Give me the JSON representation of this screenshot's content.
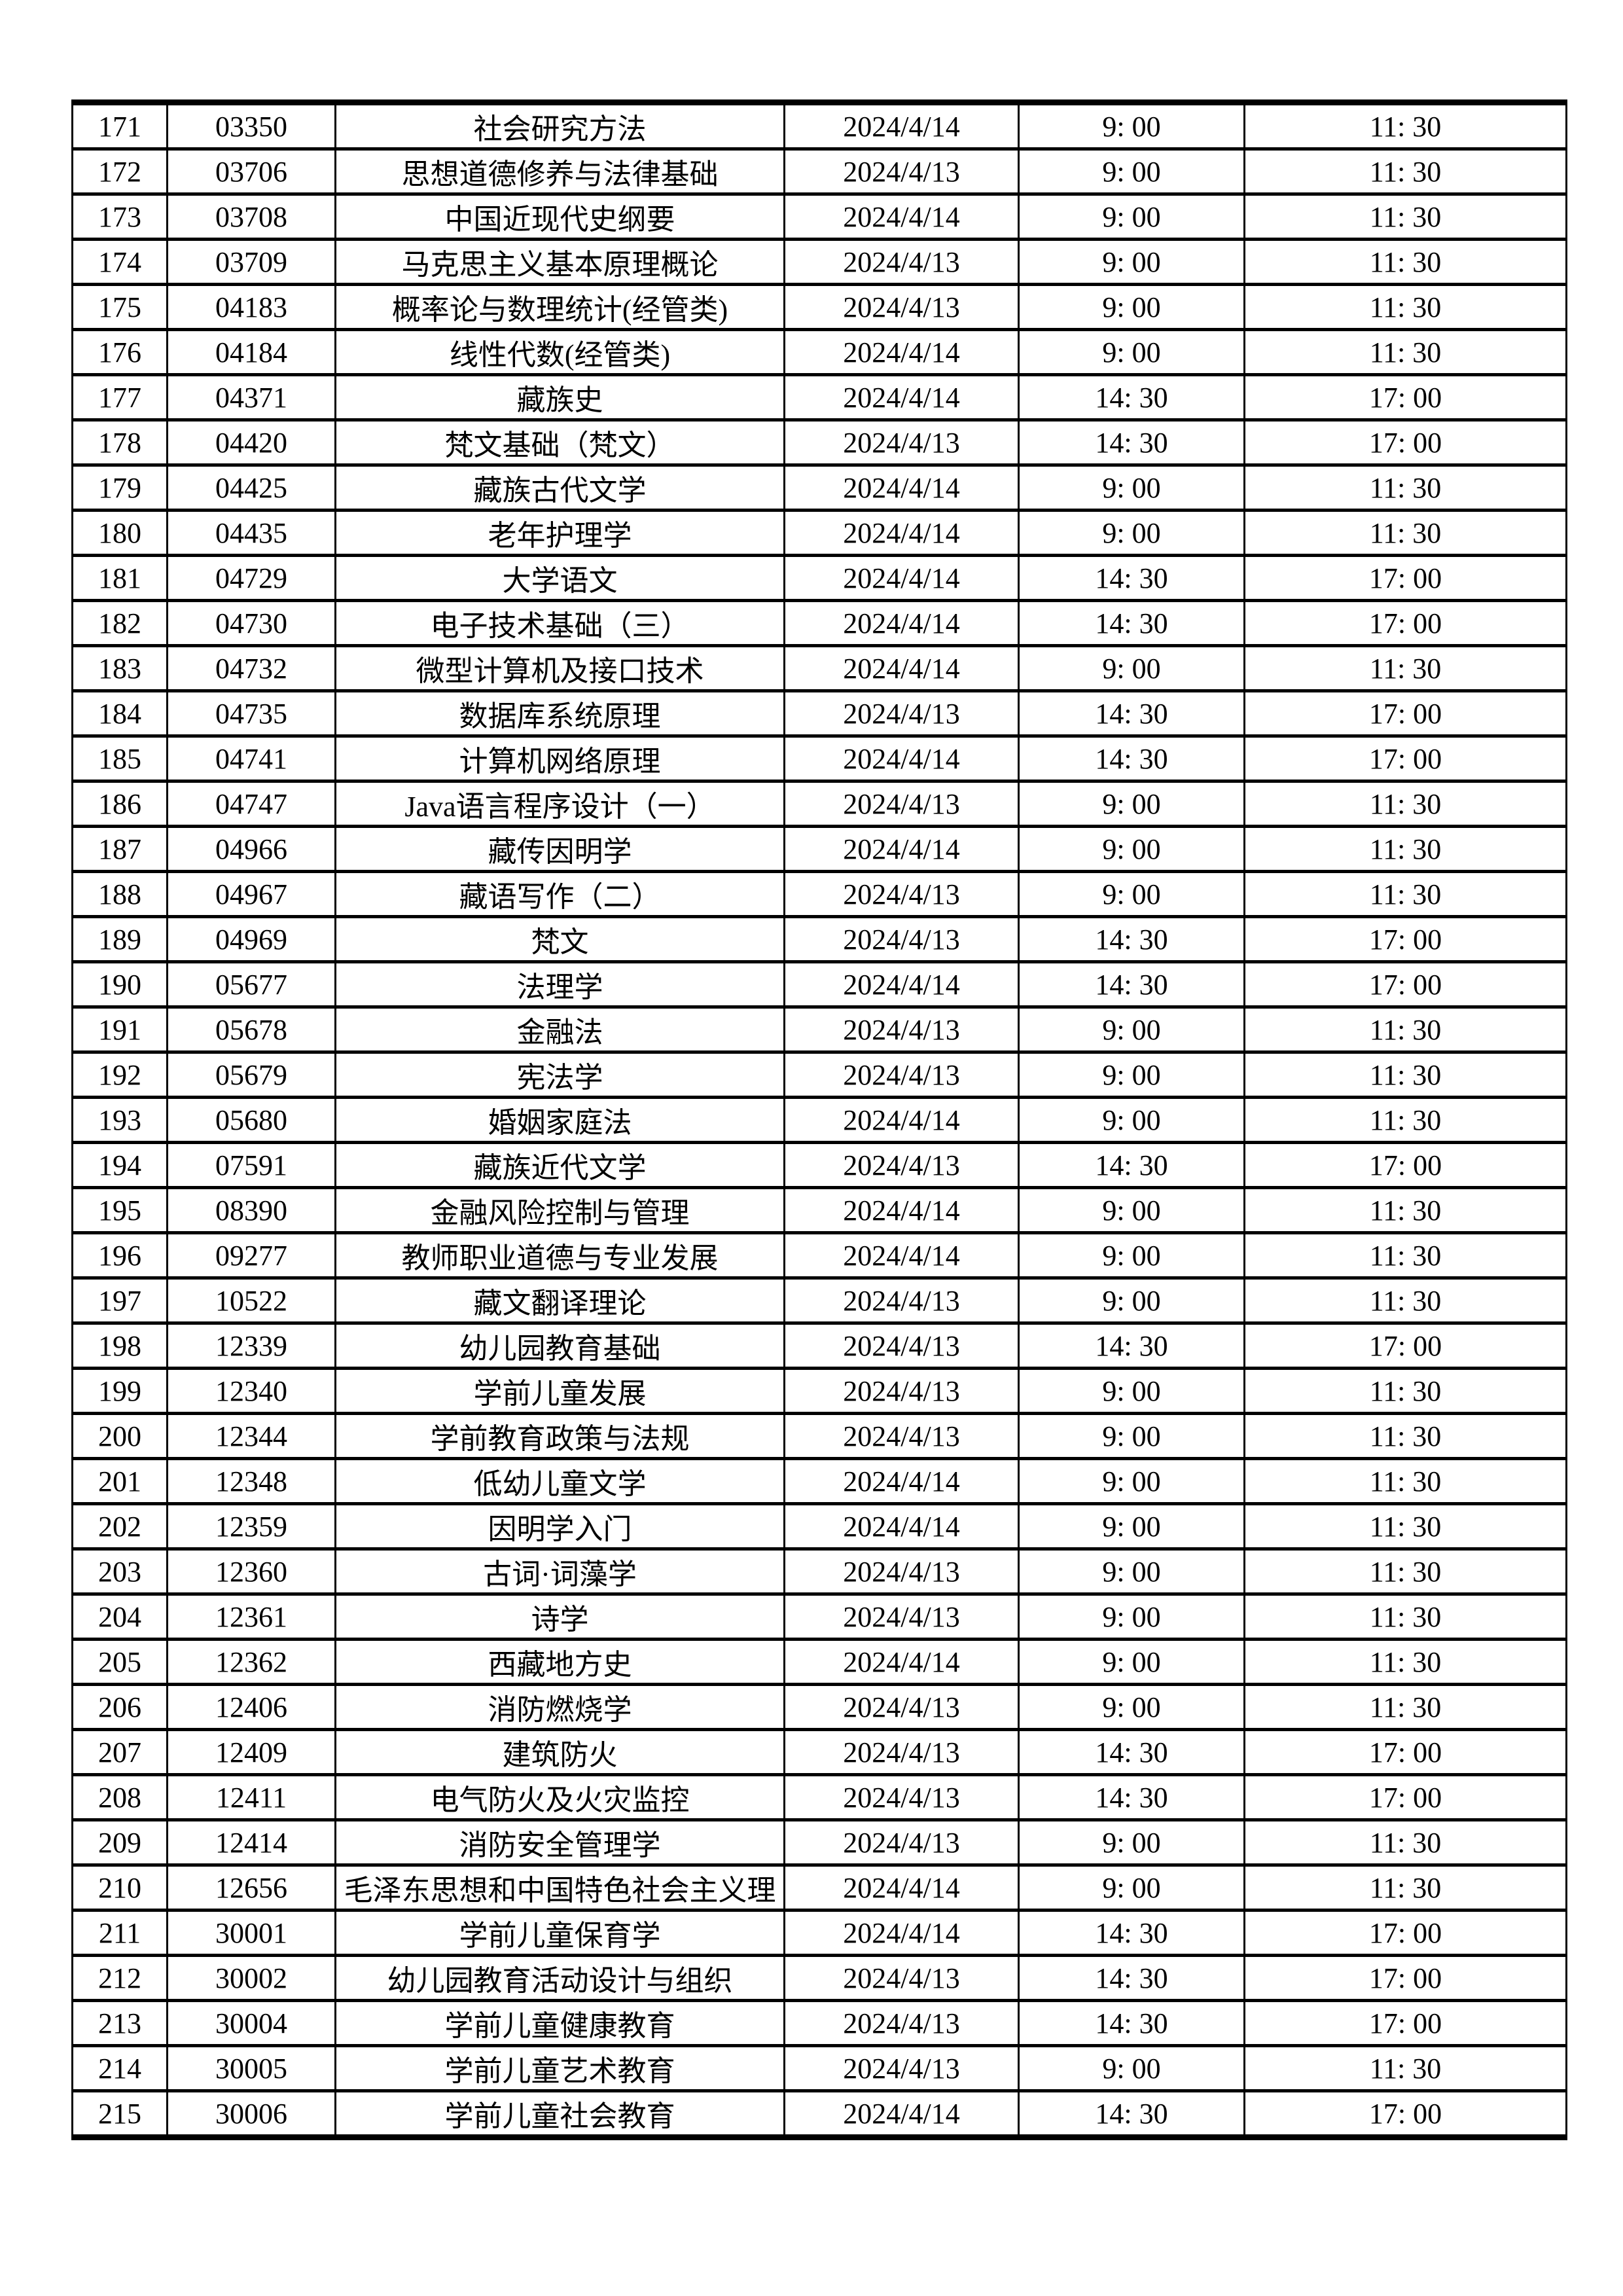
{
  "page": {
    "background": "#ffffff",
    "border_color": "#000000",
    "text_color": "#000000"
  },
  "table": {
    "rows": [
      {
        "no": "171",
        "code": "03350",
        "name": "社会研究方法",
        "date": "2024/4/14",
        "start": "9: 00",
        "end": "11: 30"
      },
      {
        "no": "172",
        "code": "03706",
        "name": "思想道德修养与法律基础",
        "date": "2024/4/13",
        "start": "9: 00",
        "end": "11: 30"
      },
      {
        "no": "173",
        "code": "03708",
        "name": "中国近现代史纲要",
        "date": "2024/4/14",
        "start": "9: 00",
        "end": "11: 30"
      },
      {
        "no": "174",
        "code": "03709",
        "name": "马克思主义基本原理概论",
        "date": "2024/4/13",
        "start": "9: 00",
        "end": "11: 30"
      },
      {
        "no": "175",
        "code": "04183",
        "name": "概率论与数理统计(经管类)",
        "date": "2024/4/13",
        "start": "9: 00",
        "end": "11: 30"
      },
      {
        "no": "176",
        "code": "04184",
        "name": "线性代数(经管类)",
        "date": "2024/4/14",
        "start": "9: 00",
        "end": "11: 30"
      },
      {
        "no": "177",
        "code": "04371",
        "name": "藏族史",
        "date": "2024/4/14",
        "start": "14: 30",
        "end": "17: 00"
      },
      {
        "no": "178",
        "code": "04420",
        "name": "梵文基础（梵文）",
        "date": "2024/4/13",
        "start": "14: 30",
        "end": "17: 00"
      },
      {
        "no": "179",
        "code": "04425",
        "name": "藏族古代文学",
        "date": "2024/4/14",
        "start": "9: 00",
        "end": "11: 30"
      },
      {
        "no": "180",
        "code": "04435",
        "name": "老年护理学",
        "date": "2024/4/14",
        "start": "9: 00",
        "end": "11: 30"
      },
      {
        "no": "181",
        "code": "04729",
        "name": "大学语文",
        "date": "2024/4/14",
        "start": "14: 30",
        "end": "17: 00"
      },
      {
        "no": "182",
        "code": "04730",
        "name": "电子技术基础（三）",
        "date": "2024/4/14",
        "start": "14: 30",
        "end": "17: 00"
      },
      {
        "no": "183",
        "code": "04732",
        "name": "微型计算机及接口技术",
        "date": "2024/4/14",
        "start": "9: 00",
        "end": "11: 30"
      },
      {
        "no": "184",
        "code": "04735",
        "name": "数据库系统原理",
        "date": "2024/4/13",
        "start": "14: 30",
        "end": "17: 00"
      },
      {
        "no": "185",
        "code": "04741",
        "name": "计算机网络原理",
        "date": "2024/4/14",
        "start": "14: 30",
        "end": "17: 00"
      },
      {
        "no": "186",
        "code": "04747",
        "name": "Java语言程序设计（一）",
        "date": "2024/4/13",
        "start": "9: 00",
        "end": "11: 30"
      },
      {
        "no": "187",
        "code": "04966",
        "name": "藏传因明学",
        "date": "2024/4/14",
        "start": "9: 00",
        "end": "11: 30"
      },
      {
        "no": "188",
        "code": "04967",
        "name": "藏语写作（二）",
        "date": "2024/4/13",
        "start": "9: 00",
        "end": "11: 30"
      },
      {
        "no": "189",
        "code": "04969",
        "name": "梵文",
        "date": "2024/4/13",
        "start": "14: 30",
        "end": "17: 00"
      },
      {
        "no": "190",
        "code": "05677",
        "name": "法理学",
        "date": "2024/4/14",
        "start": "14: 30",
        "end": "17: 00"
      },
      {
        "no": "191",
        "code": "05678",
        "name": "金融法",
        "date": "2024/4/13",
        "start": "9: 00",
        "end": "11: 30"
      },
      {
        "no": "192",
        "code": "05679",
        "name": "宪法学",
        "date": "2024/4/13",
        "start": "9: 00",
        "end": "11: 30"
      },
      {
        "no": "193",
        "code": "05680",
        "name": "婚姻家庭法",
        "date": "2024/4/14",
        "start": "9: 00",
        "end": "11: 30"
      },
      {
        "no": "194",
        "code": "07591",
        "name": "藏族近代文学",
        "date": "2024/4/13",
        "start": "14: 30",
        "end": "17: 00"
      },
      {
        "no": "195",
        "code": "08390",
        "name": "金融风险控制与管理",
        "date": "2024/4/14",
        "start": "9: 00",
        "end": "11: 30"
      },
      {
        "no": "196",
        "code": "09277",
        "name": "教师职业道德与专业发展",
        "date": "2024/4/14",
        "start": "9: 00",
        "end": "11: 30"
      },
      {
        "no": "197",
        "code": "10522",
        "name": "藏文翻译理论",
        "date": "2024/4/13",
        "start": "9: 00",
        "end": "11: 30"
      },
      {
        "no": "198",
        "code": "12339",
        "name": "幼儿园教育基础",
        "date": "2024/4/13",
        "start": "14: 30",
        "end": "17: 00"
      },
      {
        "no": "199",
        "code": "12340",
        "name": "学前儿童发展",
        "date": "2024/4/13",
        "start": "9: 00",
        "end": "11: 30"
      },
      {
        "no": "200",
        "code": "12344",
        "name": "学前教育政策与法规",
        "date": "2024/4/13",
        "start": "9: 00",
        "end": "11: 30"
      },
      {
        "no": "201",
        "code": "12348",
        "name": "低幼儿童文学",
        "date": "2024/4/14",
        "start": "9: 00",
        "end": "11: 30"
      },
      {
        "no": "202",
        "code": "12359",
        "name": "因明学入门",
        "date": "2024/4/14",
        "start": "9: 00",
        "end": "11: 30"
      },
      {
        "no": "203",
        "code": "12360",
        "name": "古词·词藻学",
        "date": "2024/4/13",
        "start": "9: 00",
        "end": "11: 30"
      },
      {
        "no": "204",
        "code": "12361",
        "name": "诗学",
        "date": "2024/4/13",
        "start": "9: 00",
        "end": "11: 30"
      },
      {
        "no": "205",
        "code": "12362",
        "name": "西藏地方史",
        "date": "2024/4/14",
        "start": "9: 00",
        "end": "11: 30"
      },
      {
        "no": "206",
        "code": "12406",
        "name": "消防燃烧学",
        "date": "2024/4/13",
        "start": "9: 00",
        "end": "11: 30"
      },
      {
        "no": "207",
        "code": "12409",
        "name": "建筑防火",
        "date": "2024/4/13",
        "start": "14: 30",
        "end": "17: 00"
      },
      {
        "no": "208",
        "code": "12411",
        "name": "电气防火及火灾监控",
        "date": "2024/4/13",
        "start": "14: 30",
        "end": "17: 00"
      },
      {
        "no": "209",
        "code": "12414",
        "name": "消防安全管理学",
        "date": "2024/4/13",
        "start": "9: 00",
        "end": "11: 30"
      },
      {
        "no": "210",
        "code": "12656",
        "name": "毛泽东思想和中国特色社会主义理",
        "date": "2024/4/14",
        "start": "9: 00",
        "end": "11: 30"
      },
      {
        "no": "211",
        "code": "30001",
        "name": "学前儿童保育学",
        "date": "2024/4/14",
        "start": "14: 30",
        "end": "17: 00"
      },
      {
        "no": "212",
        "code": "30002",
        "name": "幼儿园教育活动设计与组织",
        "date": "2024/4/13",
        "start": "14: 30",
        "end": "17: 00"
      },
      {
        "no": "213",
        "code": "30004",
        "name": "学前儿童健康教育",
        "date": "2024/4/13",
        "start": "14: 30",
        "end": "17: 00"
      },
      {
        "no": "214",
        "code": "30005",
        "name": "学前儿童艺术教育",
        "date": "2024/4/13",
        "start": "9: 00",
        "end": "11: 30"
      },
      {
        "no": "215",
        "code": "30006",
        "name": "学前儿童社会教育",
        "date": "2024/4/14",
        "start": "14: 30",
        "end": "17: 00"
      }
    ]
  }
}
